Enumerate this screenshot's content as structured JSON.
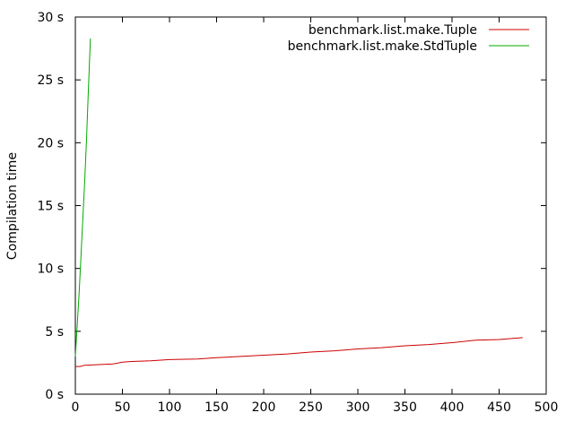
{
  "chart_data": {
    "type": "line",
    "title": "",
    "xlabel": "",
    "ylabel": "Compilation time",
    "xlim": [
      0,
      500
    ],
    "ylim": [
      0,
      30
    ],
    "x_ticks": [
      0,
      50,
      100,
      150,
      200,
      250,
      300,
      350,
      400,
      450,
      500
    ],
    "x_tick_labels": [
      "0",
      "50",
      "100",
      "150",
      "200",
      "250",
      "300",
      "350",
      "400",
      "450",
      "500"
    ],
    "y_ticks": [
      0,
      5,
      10,
      15,
      20,
      25,
      30
    ],
    "y_tick_labels": [
      "0 s",
      "5 s",
      "10 s",
      "15 s",
      "20 s",
      "25 s",
      "30 s"
    ],
    "grid": false,
    "legend_position": "top-right",
    "series": [
      {
        "name": "benchmark.list.make.Tuple",
        "color": "#cc0000",
        "x": [
          0,
          5,
          10,
          25,
          40,
          50,
          60,
          80,
          100,
          130,
          150,
          175,
          200,
          225,
          250,
          275,
          300,
          325,
          350,
          375,
          400,
          425,
          450,
          475
        ],
        "y": [
          2.2,
          2.2,
          2.3,
          2.35,
          2.4,
          2.55,
          2.6,
          2.65,
          2.75,
          2.8,
          2.9,
          3.0,
          3.1,
          3.2,
          3.35,
          3.45,
          3.6,
          3.7,
          3.85,
          3.95,
          4.1,
          4.3,
          4.35,
          4.5
        ]
      },
      {
        "name": "benchmark.list.make.StdTuple",
        "color": "#00aa00",
        "x": [
          0,
          2,
          4,
          6,
          8,
          10,
          12,
          14,
          16
        ],
        "y": [
          3.0,
          5.5,
          8.0,
          11.0,
          14.0,
          17.0,
          20.5,
          24.5,
          28.3
        ]
      }
    ]
  }
}
